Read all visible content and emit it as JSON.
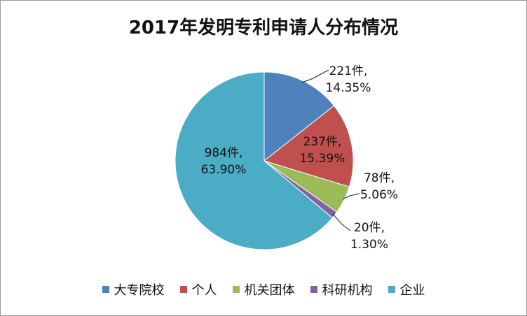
{
  "chart_data": {
    "type": "pie",
    "title": "2017年发明专利申请人分布情况",
    "legend_position": "bottom",
    "slices": [
      {
        "name": "大专院校",
        "value": 221,
        "unit": "件",
        "percent": "14.35%",
        "color": "#4F81BD"
      },
      {
        "name": "个人",
        "value": 237,
        "unit": "件",
        "percent": "15.39%",
        "color": "#C0504D"
      },
      {
        "name": "机关团体",
        "value": 78,
        "unit": "件",
        "percent": "5.06%",
        "color": "#9BBB59"
      },
      {
        "name": "科研机构",
        "value": 20,
        "unit": "件",
        "percent": "1.30%",
        "color": "#8064A2"
      },
      {
        "name": "企业",
        "value": 984,
        "unit": "件",
        "percent": "63.90%",
        "color": "#4BACC6"
      }
    ]
  }
}
